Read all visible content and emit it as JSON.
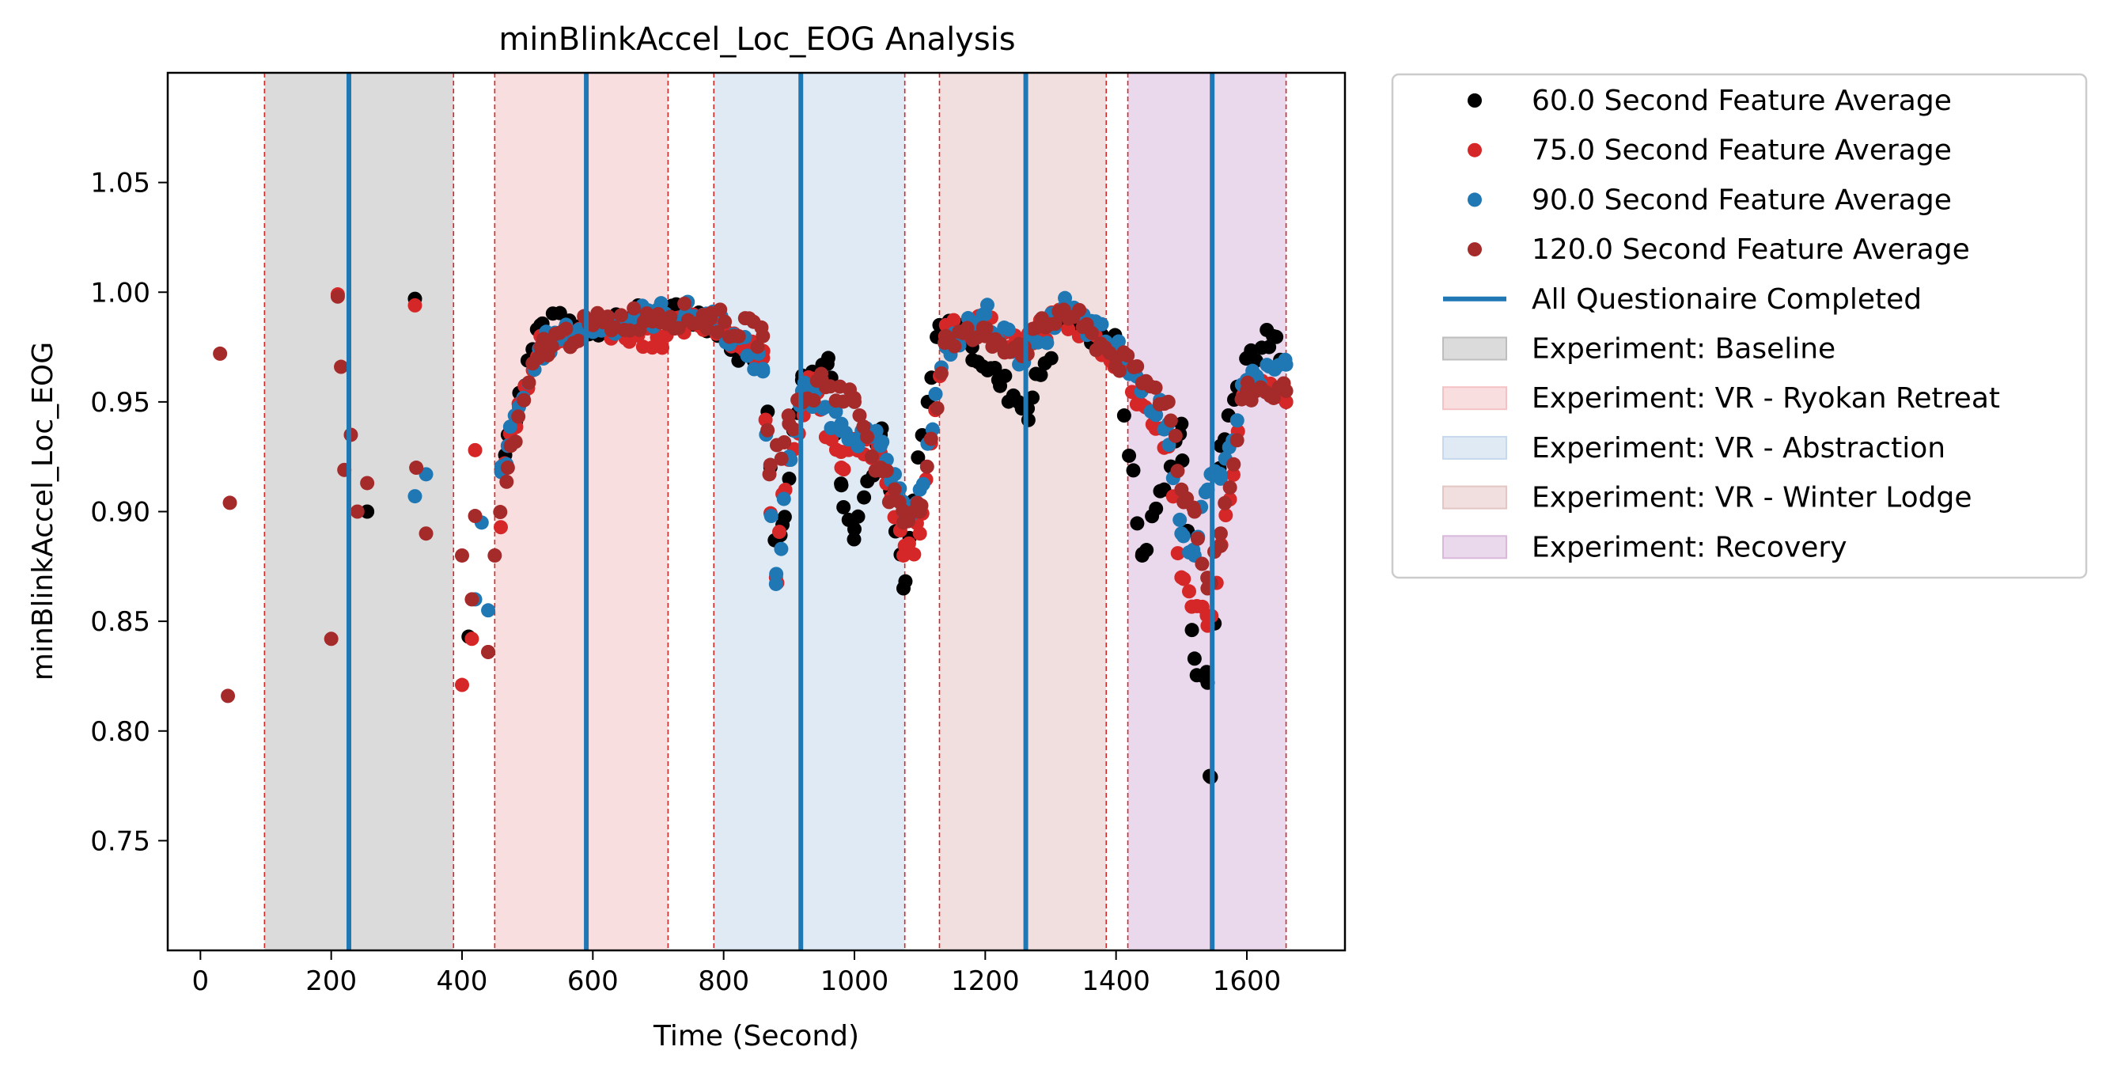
{
  "chart_data": {
    "type": "scatter",
    "title": "minBlinkAccel_Loc_EOG Analysis",
    "xlabel": "Time (Second)",
    "ylabel": "minBlinkAccel_Loc_EOG",
    "xlim": [
      -50,
      1750
    ],
    "ylim": [
      0.7,
      1.1
    ],
    "x_ticks": [
      0,
      200,
      400,
      600,
      800,
      1000,
      1200,
      1400,
      1600
    ],
    "y_ticks": [
      0.75,
      0.8,
      0.85,
      0.9,
      0.95,
      1.0,
      1.05
    ],
    "y_tick_labels": [
      "0.75",
      "0.80",
      "0.85",
      "0.90",
      "0.95",
      "1.00",
      "1.05"
    ],
    "grid": false,
    "legend_position": "outside-right",
    "phases": [
      {
        "name": "Experiment: Baseline",
        "start": 98,
        "end": 387,
        "color": "#bdbdbd"
      },
      {
        "name": "Experiment: VR - Ryokan Retreat",
        "start": 450,
        "end": 715,
        "color": "#f4c2c4"
      },
      {
        "name": "Experiment: VR - Abstraction",
        "start": 785,
        "end": 1077,
        "color": "#c6d9ec"
      },
      {
        "name": "Experiment: VR - Winter Lodge",
        "start": 1130,
        "end": 1385,
        "color": "#e3c5c3"
      },
      {
        "name": "Experiment: Recovery",
        "start": 1418,
        "end": 1660,
        "color": "#d9b8dc"
      }
    ],
    "questionnaire": {
      "name": "All Questionaire Completed",
      "color": "#1f77b4",
      "times": [
        227,
        590,
        918,
        1262,
        1547
      ]
    },
    "series": [
      {
        "name": "60.0 Second Feature Average",
        "color": "#000000",
        "anchors": [
          [
            255,
            0.9
          ],
          [
            328,
            0.997
          ],
          [
            410,
            0.843
          ],
          [
            470,
            0.935
          ],
          [
            520,
            0.985
          ],
          [
            600,
            0.985
          ],
          [
            700,
            0.99
          ],
          [
            780,
            0.988
          ],
          [
            820,
            0.975
          ],
          [
            860,
            0.97
          ],
          [
            880,
            0.887
          ],
          [
            890,
            0.894
          ],
          [
            920,
            0.96
          ],
          [
            960,
            0.97
          ],
          [
            980,
            0.912
          ],
          [
            1000,
            0.892
          ],
          [
            1040,
            0.935
          ],
          [
            1075,
            0.865
          ],
          [
            1090,
            0.905
          ],
          [
            1130,
            0.985
          ],
          [
            1160,
            0.985
          ],
          [
            1180,
            0.975
          ],
          [
            1220,
            0.96
          ],
          [
            1265,
            0.947
          ],
          [
            1320,
            0.99
          ],
          [
            1400,
            0.975
          ],
          [
            1440,
            0.88
          ],
          [
            1500,
            0.94
          ],
          [
            1520,
            0.833
          ],
          [
            1540,
            0.822
          ],
          [
            1545,
            0.779
          ],
          [
            1560,
            0.93
          ],
          [
            1600,
            0.97
          ],
          [
            1640,
            0.98
          ],
          [
            1660,
            0.95
          ]
        ]
      },
      {
        "name": "75.0 Second Feature Average",
        "color": "#d62728",
        "anchors": [
          [
            210,
            0.999
          ],
          [
            328,
            0.994
          ],
          [
            400,
            0.821
          ],
          [
            415,
            0.842
          ],
          [
            420,
            0.928
          ],
          [
            440,
            0.836
          ],
          [
            470,
            0.93
          ],
          [
            520,
            0.98
          ],
          [
            600,
            0.985
          ],
          [
            700,
            0.98
          ],
          [
            780,
            0.988
          ],
          [
            860,
            0.97
          ],
          [
            880,
            0.87
          ],
          [
            890,
            0.908
          ],
          [
            930,
            0.96
          ],
          [
            980,
            0.92
          ],
          [
            1000,
            0.93
          ],
          [
            1040,
            0.925
          ],
          [
            1075,
            0.88
          ],
          [
            1100,
            0.89
          ],
          [
            1140,
            0.985
          ],
          [
            1200,
            0.985
          ],
          [
            1260,
            0.975
          ],
          [
            1320,
            0.99
          ],
          [
            1400,
            0.97
          ],
          [
            1480,
            0.93
          ],
          [
            1500,
            0.87
          ],
          [
            1540,
            0.848
          ],
          [
            1560,
            0.885
          ],
          [
            1600,
            0.96
          ],
          [
            1660,
            0.95
          ]
        ]
      },
      {
        "name": "90.0 Second Feature Average",
        "color": "#1f77b4",
        "anchors": [
          [
            328,
            0.907
          ],
          [
            345,
            0.917
          ],
          [
            420,
            0.86
          ],
          [
            430,
            0.895
          ],
          [
            440,
            0.855
          ],
          [
            460,
            0.918
          ],
          [
            470,
            0.93
          ],
          [
            520,
            0.975
          ],
          [
            600,
            0.985
          ],
          [
            700,
            0.99
          ],
          [
            780,
            0.99
          ],
          [
            860,
            0.965
          ],
          [
            880,
            0.867
          ],
          [
            900,
            0.925
          ],
          [
            920,
            0.955
          ],
          [
            980,
            0.94
          ],
          [
            1040,
            0.93
          ],
          [
            1075,
            0.9
          ],
          [
            1100,
            0.91
          ],
          [
            1140,
            0.975
          ],
          [
            1200,
            0.99
          ],
          [
            1260,
            0.97
          ],
          [
            1320,
            0.993
          ],
          [
            1400,
            0.975
          ],
          [
            1480,
            0.94
          ],
          [
            1500,
            0.89
          ],
          [
            1520,
            0.88
          ],
          [
            1540,
            0.91
          ],
          [
            1560,
            0.915
          ],
          [
            1600,
            0.96
          ],
          [
            1660,
            0.967
          ]
        ]
      },
      {
        "name": "120.0 Second Feature Average",
        "color": "#a52a2a",
        "anchors": [
          [
            30,
            0.972
          ],
          [
            42,
            0.816
          ],
          [
            45,
            0.904
          ],
          [
            200,
            0.842
          ],
          [
            210,
            0.998
          ],
          [
            215,
            0.966
          ],
          [
            220,
            0.919
          ],
          [
            230,
            0.935
          ],
          [
            240,
            0.9
          ],
          [
            255,
            0.913
          ],
          [
            330,
            0.92
          ],
          [
            345,
            0.89
          ],
          [
            400,
            0.88
          ],
          [
            415,
            0.86
          ],
          [
            420,
            0.898
          ],
          [
            440,
            0.836
          ],
          [
            450,
            0.88
          ],
          [
            470,
            0.92
          ],
          [
            520,
            0.975
          ],
          [
            600,
            0.985
          ],
          [
            700,
            0.99
          ],
          [
            780,
            0.988
          ],
          [
            860,
            0.98
          ],
          [
            870,
            0.917
          ],
          [
            900,
            0.94
          ],
          [
            950,
            0.96
          ],
          [
            1000,
            0.95
          ],
          [
            1040,
            0.92
          ],
          [
            1075,
            0.895
          ],
          [
            1100,
            0.9
          ],
          [
            1140,
            0.98
          ],
          [
            1200,
            0.98
          ],
          [
            1260,
            0.975
          ],
          [
            1320,
            0.992
          ],
          [
            1400,
            0.97
          ],
          [
            1480,
            0.95
          ],
          [
            1500,
            0.91
          ],
          [
            1520,
            0.9
          ],
          [
            1540,
            0.865
          ],
          [
            1560,
            0.89
          ],
          [
            1600,
            0.955
          ],
          [
            1660,
            0.955
          ]
        ]
      }
    ],
    "legend": [
      {
        "kind": "marker",
        "label": "60.0 Second Feature Average",
        "color": "#000000"
      },
      {
        "kind": "marker",
        "label": "75.0 Second Feature Average",
        "color": "#d62728"
      },
      {
        "kind": "marker",
        "label": "90.0 Second Feature Average",
        "color": "#1f77b4"
      },
      {
        "kind": "marker",
        "label": "120.0 Second Feature Average",
        "color": "#a52a2a"
      },
      {
        "kind": "line",
        "label": "All Questionaire Completed",
        "color": "#1f77b4"
      },
      {
        "kind": "patch",
        "label": "Experiment: Baseline",
        "color": "#bdbdbd"
      },
      {
        "kind": "patch",
        "label": "Experiment: VR - Ryokan Retreat",
        "color": "#f4c2c4"
      },
      {
        "kind": "patch",
        "label": "Experiment: VR - Abstraction",
        "color": "#c6d9ec"
      },
      {
        "kind": "patch",
        "label": "Experiment: VR - Winter Lodge",
        "color": "#e3c5c3"
      },
      {
        "kind": "patch",
        "label": "Experiment: Recovery",
        "color": "#d9b8dc"
      }
    ]
  }
}
